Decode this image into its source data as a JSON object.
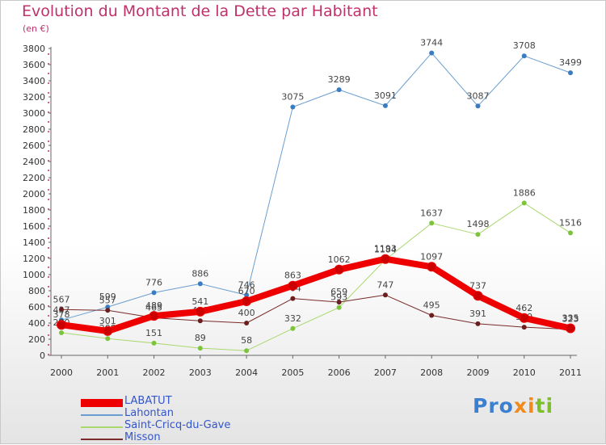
{
  "header": {
    "title": "Evolution du Montant de la Dette par Habitant",
    "subtitle": "(en €)"
  },
  "logo": {
    "text": "Proxiti",
    "part1": "Pro",
    "part2": "xi",
    "part3": "ti"
  },
  "chart_data": {
    "type": "line",
    "title": "Evolution du Montant de la Dette par Habitant",
    "subtitle": "(en €)",
    "x": [
      "2000",
      "2001",
      "2002",
      "2003",
      "2004",
      "2005",
      "2006",
      "2007",
      "2008",
      "2009",
      "2010",
      "2011"
    ],
    "ylim": [
      0,
      3800
    ],
    "yticks": [
      0,
      200,
      400,
      600,
      800,
      1000,
      1200,
      1400,
      1600,
      1800,
      2000,
      2200,
      2400,
      2600,
      2800,
      3000,
      3200,
      3400,
      3600,
      3800
    ],
    "grid": false,
    "legend_position": "bottom-left",
    "series": [
      {
        "name": "Lahontan",
        "color": "#6a9ed0",
        "marker": "#3a7cc0",
        "width": 1,
        "values": [
          437,
          599,
          776,
          886,
          746,
          3075,
          3289,
          3091,
          3744,
          3087,
          3708,
          3499
        ]
      },
      {
        "name": "Saint-Cricq-du-Gave",
        "color": "#a9d86e",
        "marker": "#7cc43a",
        "width": 1,
        "values": [
          280,
          208,
          151,
          89,
          58,
          332,
          593,
          1184,
          1637,
          1498,
          1886,
          1516
        ]
      },
      {
        "name": "Misson",
        "color": "#7a2a2a",
        "marker": "#6a1e1e",
        "width": 1,
        "values": [
          567,
          557,
          465,
          428,
          400,
          704,
          659,
          747,
          495,
          391,
          349,
          323
        ]
      },
      {
        "name": "LABATUT",
        "color": "#ee0000",
        "marker": "#cc0000",
        "width": 8,
        "values": [
          378,
          301,
          489,
          541,
          670,
          863,
          1062,
          1193,
          1097,
          737,
          462,
          335
        ]
      }
    ]
  }
}
